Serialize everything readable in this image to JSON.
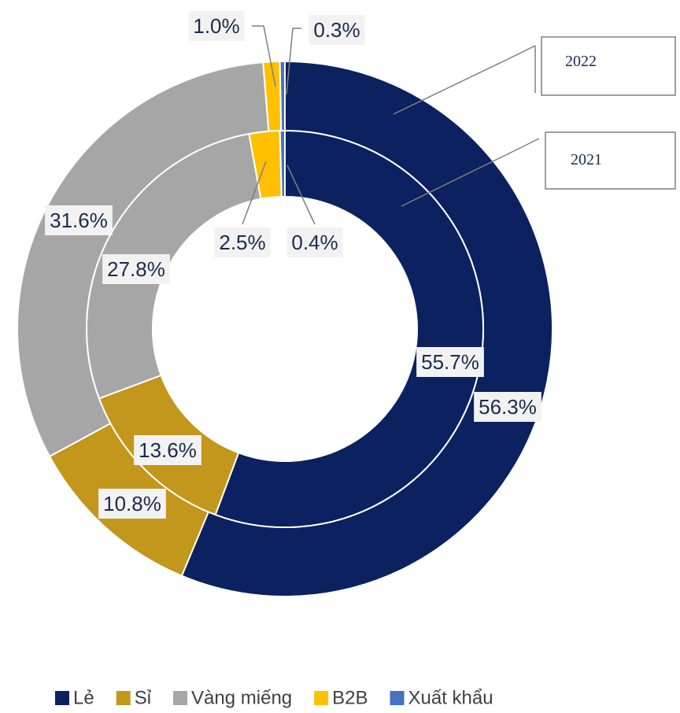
{
  "chart_data": {
    "type": "donut",
    "categories": [
      "Lẻ",
      "Sỉ",
      "Vàng miếng",
      "B2B",
      "Xuất khẩu"
    ],
    "colors": [
      "#0b2160",
      "#c3961c",
      "#a6a6a6",
      "#ffc000",
      "#4472c4"
    ],
    "series": [
      {
        "name": "2022",
        "values": [
          56.3,
          10.8,
          31.6,
          1.0,
          0.3
        ],
        "value_labels": [
          "56.3%",
          "10.8%",
          "31.6%",
          "1.0%",
          "0.3%"
        ]
      },
      {
        "name": "2021",
        "values": [
          55.7,
          13.6,
          27.8,
          2.5,
          0.4
        ],
        "value_labels": [
          "55.7%",
          "13.6%",
          "27.8%",
          "2.5%",
          "0.4%"
        ]
      }
    ],
    "legend": "bottom"
  }
}
